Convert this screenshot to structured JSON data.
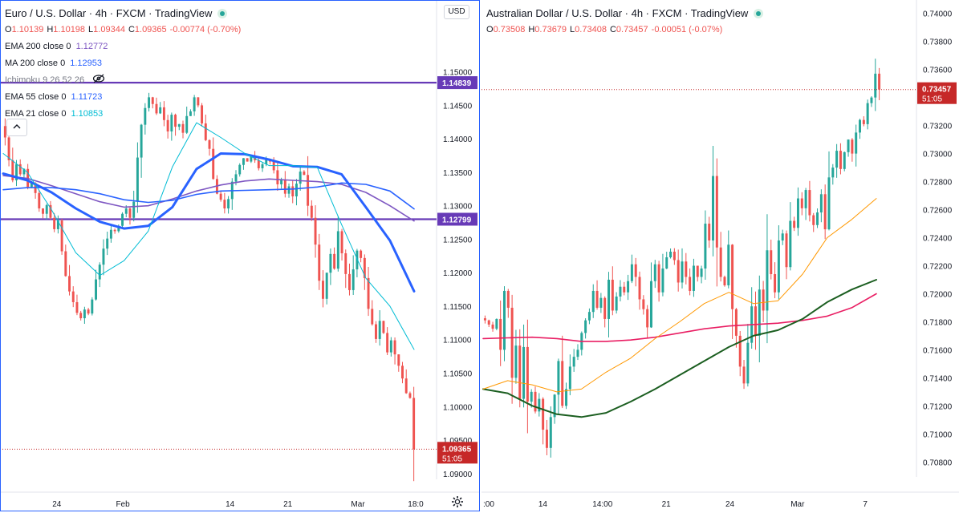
{
  "left": {
    "title": "Euro / U.S. Dollar · 4h · FXCM · TradingView",
    "ohlc": {
      "o": "1.10139",
      "h": "1.10198",
      "l": "1.09344",
      "c": "1.09365",
      "chg": "-0.00774 (-0.70%)"
    },
    "indicators": [
      {
        "name": "EMA 200 close 0",
        "value": "1.12772",
        "color": "#7e57c2"
      },
      {
        "name": "MA 200 close 0",
        "value": "1.12953",
        "color": "#2962ff"
      },
      {
        "name": "Ichimoku 9 26 52 26",
        "value": "",
        "color": "#787b86"
      },
      {
        "name": "EMA 55 close 0",
        "value": "1.11723",
        "color": "#2962ff"
      },
      {
        "name": "EMA 21 close 0",
        "value": "1.10853",
        "color": "#00bcd4"
      }
    ],
    "currency": "USD",
    "collapse_icon": "chevron-up-icon",
    "settings_icon": "gear-icon",
    "chart_data": {
      "type": "candlestick",
      "yticks": [
        "1.15000",
        "1.14500",
        "1.14000",
        "1.13500",
        "1.13000",
        "1.12500",
        "1.12000",
        "1.11500",
        "1.11000",
        "1.10500",
        "1.10000",
        "1.09500",
        "1.09000"
      ],
      "ylim": [
        1.0883,
        1.1575
      ],
      "xticks": [
        {
          "label": "24",
          "pos": 0.13
        },
        {
          "label": "Feb",
          "pos": 0.29
        },
        {
          "label": "14",
          "pos": 0.55
        },
        {
          "label": "21",
          "pos": 0.69
        },
        {
          "label": "Mar",
          "pos": 0.86
        },
        {
          "label": "18:0",
          "pos": 1.0
        }
      ],
      "hlines": [
        {
          "value": 1.14839,
          "label": "1.14839",
          "color": "#673ab7"
        },
        {
          "value": 1.12799,
          "label": "1.12799",
          "color": "#673ab7"
        }
      ],
      "last_price": {
        "value": 1.09365,
        "label": "1.09365",
        "timer": "51:05",
        "color": "#c62828"
      },
      "closes": [
        1.1402,
        1.1368,
        1.1338,
        1.1362,
        1.1347,
        1.1355,
        1.1328,
        1.1334,
        1.1319,
        1.1296,
        1.1288,
        1.1301,
        1.1282,
        1.1265,
        1.1278,
        1.1232,
        1.1195,
        1.1172,
        1.1156,
        1.114,
        1.1132,
        1.1145,
        1.1139,
        1.116,
        1.119,
        1.1212,
        1.1236,
        1.1251,
        1.1264,
        1.1262,
        1.127,
        1.1288,
        1.1296,
        1.1282,
        1.1306,
        1.1372,
        1.1421,
        1.1446,
        1.1462,
        1.1452,
        1.1438,
        1.1447,
        1.1428,
        1.1411,
        1.1436,
        1.1418,
        1.1422,
        1.1409,
        1.1434,
        1.1441,
        1.1462,
        1.145,
        1.1423,
        1.1398,
        1.1385,
        1.134,
        1.1318,
        1.1309,
        1.1296,
        1.131,
        1.1336,
        1.1347,
        1.1361,
        1.1371,
        1.1366,
        1.1375,
        1.1368,
        1.1356,
        1.1362,
        1.137,
        1.1366,
        1.1353,
        1.1332,
        1.1339,
        1.1318,
        1.1329,
        1.1314,
        1.1333,
        1.1351,
        1.1346,
        1.13,
        1.1282,
        1.1242,
        1.1188,
        1.1161,
        1.12,
        1.1228,
        1.1206,
        1.1262,
        1.1229,
        1.1198,
        1.1174,
        1.1205,
        1.1233,
        1.1222,
        1.1192,
        1.1146,
        1.1123,
        1.1101,
        1.1128,
        1.111,
        1.1081,
        1.1099,
        1.1078,
        1.1061,
        1.1042,
        1.102,
        1.1013,
        1.09365
      ],
      "series": [
        {
          "name": "EMA 200",
          "color": "#7e57c2",
          "width": 1.6,
          "y": [
            1.1345,
            1.1341,
            1.133,
            1.1318,
            1.1306,
            1.1298,
            1.13,
            1.131,
            1.1322,
            1.1331,
            1.1337,
            1.134,
            1.1338,
            1.1336,
            1.1332,
            1.132,
            1.13,
            1.12772
          ]
        },
        {
          "name": "MA 200",
          "color": "#2962ff",
          "width": 1.6,
          "y": [
            1.1324,
            1.1327,
            1.1327,
            1.1324,
            1.1318,
            1.1309,
            1.1305,
            1.1308,
            1.1317,
            1.1322,
            1.1323,
            1.1324,
            1.1325,
            1.1328,
            1.1334,
            1.1332,
            1.1322,
            1.12953
          ]
        },
        {
          "name": "EMA 55",
          "color": "#2962ff",
          "width": 3,
          "y": [
            1.1348,
            1.1338,
            1.132,
            1.1296,
            1.1276,
            1.1266,
            1.127,
            1.1298,
            1.1355,
            1.1378,
            1.1377,
            1.1369,
            1.1359,
            1.1358,
            1.1347,
            1.1298,
            1.1248,
            1.11723
          ]
        },
        {
          "name": "EMA 21",
          "color": "#00bcd4",
          "width": 1,
          "y": [
            1.1378,
            1.135,
            1.1294,
            1.123,
            1.1196,
            1.1218,
            1.1262,
            1.1358,
            1.1424,
            1.1402,
            1.1378,
            1.136,
            1.136,
            1.1357,
            1.1272,
            1.1192,
            1.115,
            1.10853
          ]
        }
      ]
    }
  },
  "right": {
    "title": "Australian Dollar / U.S. Dollar · 4h · FXCM · TradingView",
    "ohlc": {
      "o": "0.73508",
      "h": "0.73679",
      "l": "0.73408",
      "c": "0.73457",
      "chg": "-0.00051 (-0.07%)"
    },
    "chart_data": {
      "type": "candlestick",
      "yticks": [
        "0.74000",
        "0.73800",
        "0.73600",
        "0.73400",
        "0.73200",
        "0.73000",
        "0.72800",
        "0.72600",
        "0.72400",
        "0.72200",
        "0.72000",
        "0.71800",
        "0.71600",
        "0.71400",
        "0.71200",
        "0.71000",
        "0.70800",
        "0.70600"
      ],
      "ylim": [
        0.7055,
        0.7405
      ],
      "xticks": [
        {
          "label": ":00",
          "pos": 0.0
        },
        {
          "label": "14",
          "pos": 0.15
        },
        {
          "label": "14:00",
          "pos": 0.3
        },
        {
          "label": "21",
          "pos": 0.46
        },
        {
          "label": "24",
          "pos": 0.62
        },
        {
          "label": "Mar",
          "pos": 0.79
        },
        {
          "label": "7",
          "pos": 0.96
        }
      ],
      "last_price": {
        "value": 0.73457,
        "label": "0.73457",
        "timer": "51:05",
        "color": "#c62828"
      },
      "closes": [
        0.7181,
        0.7178,
        0.7175,
        0.7182,
        0.716,
        0.7202,
        0.719,
        0.714,
        0.7163,
        0.7125,
        0.7162,
        0.7123,
        0.713,
        0.7116,
        0.7125,
        0.7103,
        0.709,
        0.7112,
        0.7128,
        0.7152,
        0.712,
        0.7132,
        0.7148,
        0.7155,
        0.716,
        0.7172,
        0.7181,
        0.7187,
        0.7202,
        0.719,
        0.7197,
        0.7182,
        0.721,
        0.7188,
        0.7198,
        0.7205,
        0.7201,
        0.7209,
        0.7221,
        0.7212,
        0.7196,
        0.7189,
        0.7176,
        0.7209,
        0.7221,
        0.7201,
        0.7218,
        0.7226,
        0.723,
        0.7224,
        0.7208,
        0.7223,
        0.7212,
        0.7202,
        0.722,
        0.7212,
        0.7218,
        0.725,
        0.7238,
        0.7284,
        0.7233,
        0.7212,
        0.7206,
        0.7235,
        0.7189,
        0.717,
        0.7148,
        0.7136,
        0.7165,
        0.7191,
        0.717,
        0.7203,
        0.7188,
        0.7231,
        0.7214,
        0.7201,
        0.7238,
        0.7243,
        0.7219,
        0.7252,
        0.7247,
        0.7268,
        0.7261,
        0.7274,
        0.7256,
        0.7249,
        0.7258,
        0.7271,
        0.7246,
        0.7283,
        0.729,
        0.7302,
        0.7289,
        0.7301,
        0.731,
        0.73,
        0.7315,
        0.7324,
        0.7321,
        0.7336,
        0.734,
        0.7357,
        0.73457
      ],
      "series": [
        {
          "name": "EMA 200",
          "color": "#e91e63",
          "width": 1.6,
          "y": [
            0.7168,
            0.71685,
            0.7169,
            0.7168,
            0.7166,
            0.7166,
            0.7167,
            0.7169,
            0.7172,
            0.7175,
            0.7177,
            0.7178,
            0.7179,
            0.7181,
            0.7184,
            0.719,
            0.72
          ]
        },
        {
          "name": "EMA 100",
          "color": "#1b5e20",
          "width": 2,
          "y": [
            0.7132,
            0.7129,
            0.712,
            0.7114,
            0.7112,
            0.7115,
            0.7123,
            0.7132,
            0.7142,
            0.7152,
            0.7162,
            0.717,
            0.7174,
            0.7182,
            0.7194,
            0.7203,
            0.721
          ]
        },
        {
          "name": "EMA 55",
          "color": "#ff9800",
          "width": 1,
          "y": [
            0.7132,
            0.7138,
            0.7135,
            0.713,
            0.7132,
            0.7144,
            0.7154,
            0.7168,
            0.718,
            0.7193,
            0.7201,
            0.7193,
            0.7195,
            0.7214,
            0.724,
            0.7253,
            0.7268
          ]
        }
      ]
    }
  }
}
